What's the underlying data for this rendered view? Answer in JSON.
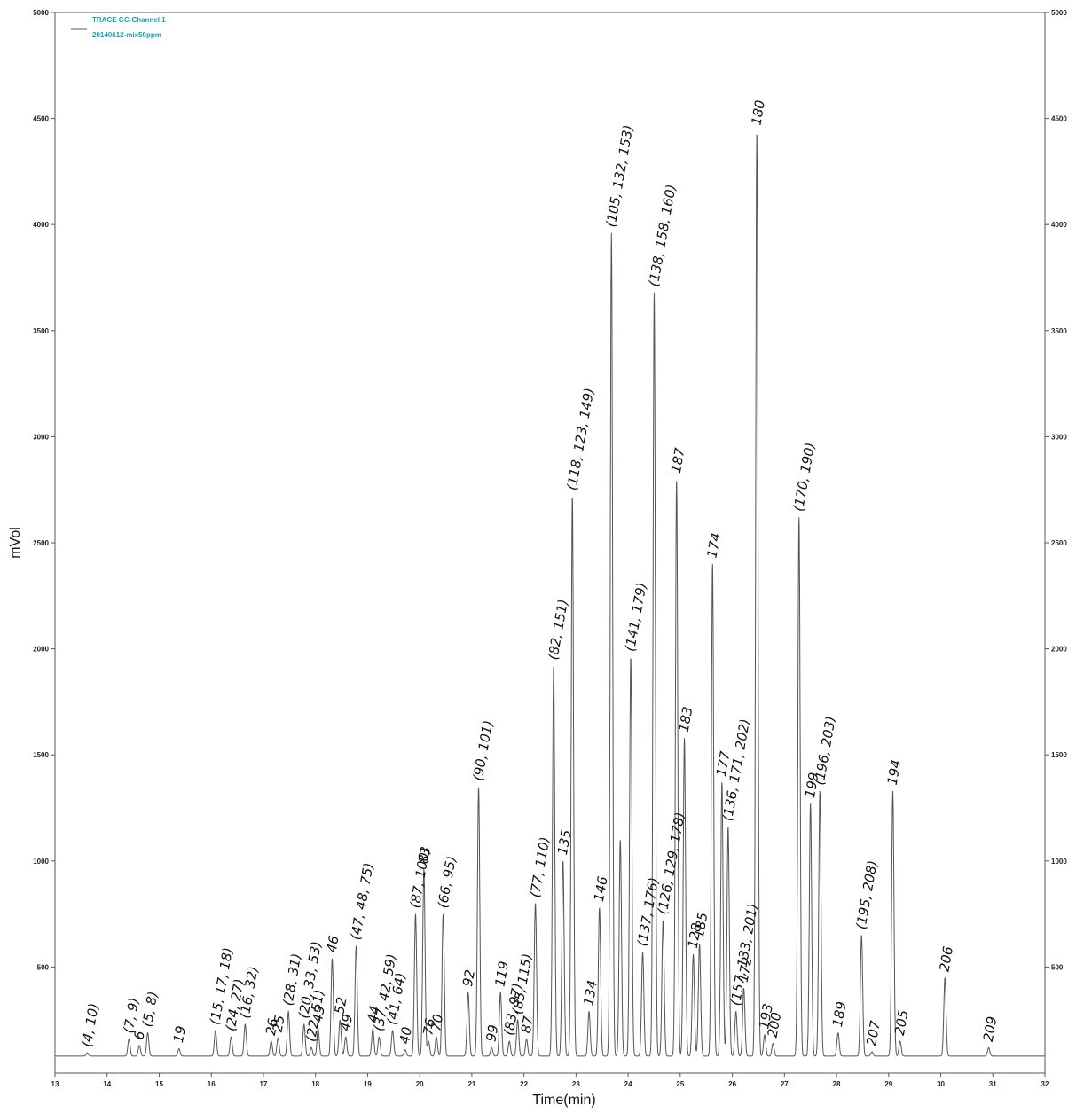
{
  "chart_data": {
    "type": "line",
    "legend": {
      "placement": "top-left",
      "line1": "TRACE GC-Channel 1",
      "line2": "20140612-mix50ppm",
      "color": "#1a9fb8"
    },
    "xlabel": "Time(min)",
    "ylabel": "mVol",
    "xlim": [
      13,
      32
    ],
    "ylim": [
      0,
      5000
    ],
    "baseline": 80,
    "x_ticks": [
      "13",
      "14",
      "15",
      "16",
      "17",
      "18",
      "19",
      "20",
      "21",
      "22",
      "23",
      "24",
      "25",
      "26",
      "27",
      "28",
      "29",
      "30",
      "31",
      "32"
    ],
    "y_ticks": [
      "500",
      "1000",
      "1500",
      "2000",
      "2500",
      "3000",
      "3500",
      "4000",
      "4500",
      "5000"
    ],
    "line_color": "#555555",
    "peaks": [
      {
        "x": 13.62,
        "y": 95,
        "label": "(4, 10)"
      },
      {
        "x": 14.42,
        "y": 160,
        "label": "(7, 9)"
      },
      {
        "x": 14.62,
        "y": 130,
        "label": "6"
      },
      {
        "x": 14.78,
        "y": 190,
        "label": "(5, 8)"
      },
      {
        "x": 15.38,
        "y": 115,
        "label": "19"
      },
      {
        "x": 16.08,
        "y": 200,
        "label": "(15, 17, 18)"
      },
      {
        "x": 16.38,
        "y": 170,
        "label": "(24, 27)"
      },
      {
        "x": 16.65,
        "y": 230,
        "label": "(16, 32)"
      },
      {
        "x": 17.15,
        "y": 150,
        "label": "26"
      },
      {
        "x": 17.28,
        "y": 165,
        "label": "25"
      },
      {
        "x": 17.48,
        "y": 290,
        "label": "(28, 31)"
      },
      {
        "x": 17.78,
        "y": 230,
        "label": "(20, 33, 53)"
      },
      {
        "x": 17.92,
        "y": 120,
        "label": "(22, 51)"
      },
      {
        "x": 18.05,
        "y": 210,
        "label": "45"
      },
      {
        "x": 18.32,
        "y": 540,
        "label": "46"
      },
      {
        "x": 18.47,
        "y": 250,
        "label": "52"
      },
      {
        "x": 18.58,
        "y": 170,
        "label": "49"
      },
      {
        "x": 18.78,
        "y": 600,
        "label": "(47, 48, 75)"
      },
      {
        "x": 19.1,
        "y": 210,
        "label": "44"
      },
      {
        "x": 19.22,
        "y": 170,
        "label": "(37, 42, 59)"
      },
      {
        "x": 19.48,
        "y": 200,
        "label": "(41, 64)"
      },
      {
        "x": 19.72,
        "y": 110,
        "label": "40"
      },
      {
        "x": 19.92,
        "y": 750,
        "label": "(87, 100)"
      },
      {
        "x": 20.08,
        "y": 960,
        "label": "83"
      },
      {
        "x": 20.17,
        "y": 150,
        "label": "76"
      },
      {
        "x": 20.32,
        "y": 170,
        "label": "70"
      },
      {
        "x": 20.45,
        "y": 750,
        "label": "(66, 95)"
      },
      {
        "x": 20.93,
        "y": 380,
        "label": "92"
      },
      {
        "x": 21.13,
        "y": 1350,
        "label": "(90, 101)"
      },
      {
        "x": 21.38,
        "y": 120,
        "label": "99"
      },
      {
        "x": 21.55,
        "y": 380,
        "label": "119"
      },
      {
        "x": 21.72,
        "y": 150,
        "label": "(83, 97)"
      },
      {
        "x": 21.88,
        "y": 250,
        "label": "(85, 115)"
      },
      {
        "x": 22.05,
        "y": 160,
        "label": "87"
      },
      {
        "x": 22.22,
        "y": 800,
        "label": "(77, 110)"
      },
      {
        "x": 22.57,
        "y": 1920,
        "label": "(82, 151)"
      },
      {
        "x": 22.75,
        "y": 1000,
        "label": "135"
      },
      {
        "x": 22.93,
        "y": 2720,
        "label": "(118, 123, 149)"
      },
      {
        "x": 23.25,
        "y": 290,
        "label": "134"
      },
      {
        "x": 23.45,
        "y": 780,
        "label": "146"
      },
      {
        "x": 23.68,
        "y": 3960,
        "label": "(105, 132, 153)"
      },
      {
        "x": 23.85,
        "y": 1100,
        "label": ""
      },
      {
        "x": 24.05,
        "y": 1960,
        "label": "(141, 179)"
      },
      {
        "x": 24.28,
        "y": 570,
        "label": "(137, 176)"
      },
      {
        "x": 24.5,
        "y": 3680,
        "label": "(138, 158, 160)"
      },
      {
        "x": 24.67,
        "y": 720,
        "label": "(126, 129, 178)"
      },
      {
        "x": 24.93,
        "y": 2800,
        "label": "187"
      },
      {
        "x": 25.08,
        "y": 1580,
        "label": "183"
      },
      {
        "x": 25.25,
        "y": 560,
        "label": "128"
      },
      {
        "x": 25.37,
        "y": 610,
        "label": "185"
      },
      {
        "x": 25.62,
        "y": 2400,
        "label": "174"
      },
      {
        "x": 25.8,
        "y": 1370,
        "label": "177"
      },
      {
        "x": 25.92,
        "y": 1160,
        "label": "(136, 171, 202)"
      },
      {
        "x": 26.07,
        "y": 290,
        "label": "(157, 133, 201)"
      },
      {
        "x": 26.22,
        "y": 400,
        "label": "172"
      },
      {
        "x": 26.47,
        "y": 4440,
        "label": "180"
      },
      {
        "x": 26.62,
        "y": 180,
        "label": "193"
      },
      {
        "x": 26.78,
        "y": 140,
        "label": "200"
      },
      {
        "x": 27.28,
        "y": 2620,
        "label": "(170, 190)"
      },
      {
        "x": 27.5,
        "y": 1270,
        "label": "199"
      },
      {
        "x": 27.68,
        "y": 1330,
        "label": "(196, 203)"
      },
      {
        "x": 28.03,
        "y": 190,
        "label": "189"
      },
      {
        "x": 28.48,
        "y": 650,
        "label": "(195, 208)"
      },
      {
        "x": 28.68,
        "y": 100,
        "label": "207"
      },
      {
        "x": 29.08,
        "y": 1330,
        "label": "194"
      },
      {
        "x": 29.22,
        "y": 150,
        "label": "205"
      },
      {
        "x": 30.08,
        "y": 450,
        "label": "206"
      },
      {
        "x": 30.92,
        "y": 120,
        "label": "209"
      }
    ]
  }
}
